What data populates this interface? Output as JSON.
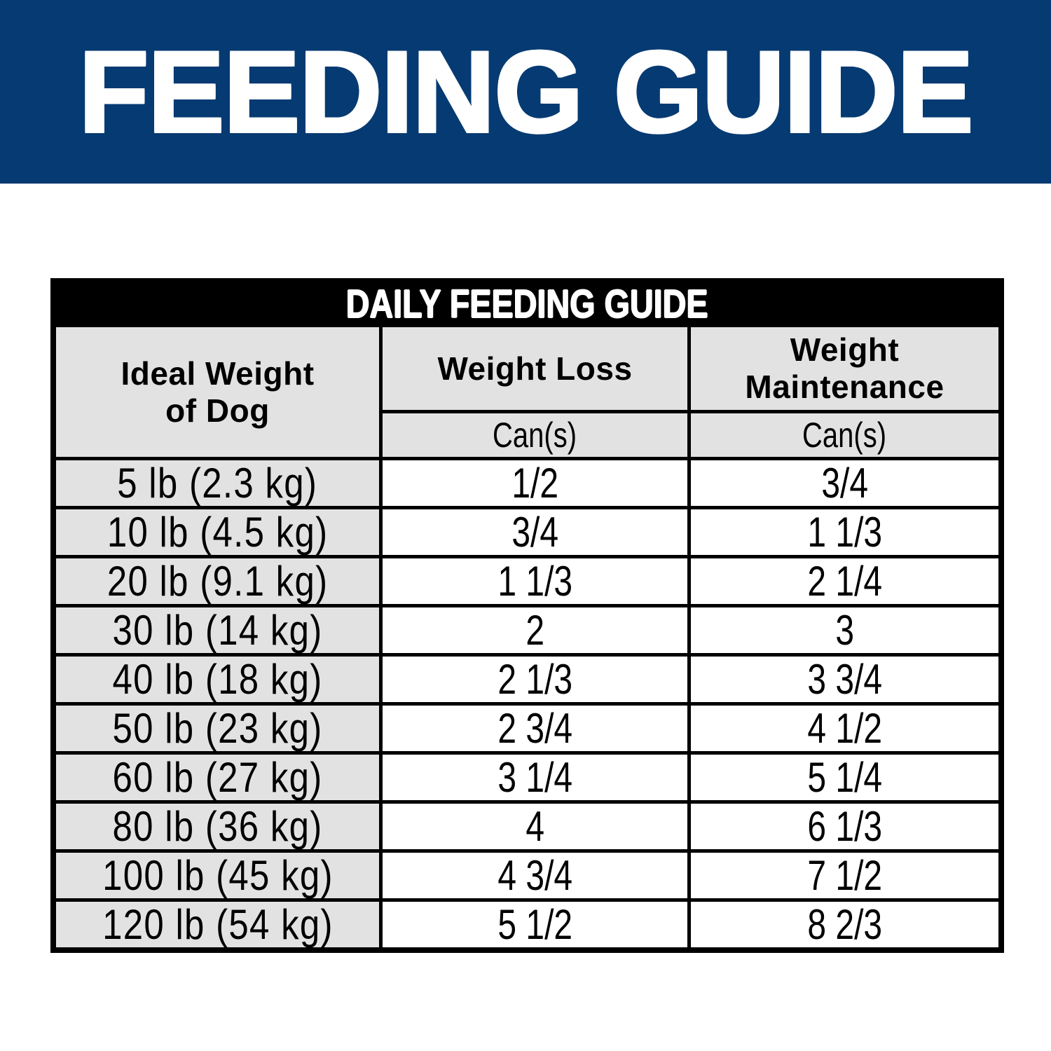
{
  "banner": {
    "title": "FEEDING GUIDE",
    "bg_color": "#063a72",
    "text_color": "#ffffff"
  },
  "table": {
    "caption": "DAILY FEEDING GUIDE",
    "caption_bg": "#000000",
    "header_bg": "#e2e2e2",
    "row_label_bg": "#e2e2e2",
    "border_color": "#000000",
    "columns": {
      "ideal_weight": "Ideal Weight\nof Dog",
      "weight_loss": "Weight Loss",
      "weight_maintenance": "Weight\nMaintenance",
      "loss_unit": "Can(s)",
      "maintenance_unit": "Can(s)"
    },
    "rows": [
      {
        "weight": "5 lb (2.3 kg)",
        "loss": "1/2",
        "maintenance": "3/4"
      },
      {
        "weight": "10 lb (4.5 kg)",
        "loss": "3/4",
        "maintenance": "1 1/3"
      },
      {
        "weight": "20 lb (9.1 kg)",
        "loss": "1 1/3",
        "maintenance": "2 1/4"
      },
      {
        "weight": "30 lb (14 kg)",
        "loss": "2",
        "maintenance": "3"
      },
      {
        "weight": "40 lb (18 kg)",
        "loss": "2 1/3",
        "maintenance": "3 3/4"
      },
      {
        "weight": "50 lb (23 kg)",
        "loss": "2 3/4",
        "maintenance": "4 1/2"
      },
      {
        "weight": "60 lb (27 kg)",
        "loss": "3 1/4",
        "maintenance": "5 1/4"
      },
      {
        "weight": "80 lb (36 kg)",
        "loss": "4",
        "maintenance": "6 1/3"
      },
      {
        "weight": "100 lb (45 kg)",
        "loss": "4 3/4",
        "maintenance": "7 1/2"
      },
      {
        "weight": "120 lb (54 kg)",
        "loss": "5 1/2",
        "maintenance": "8 2/3"
      }
    ]
  }
}
